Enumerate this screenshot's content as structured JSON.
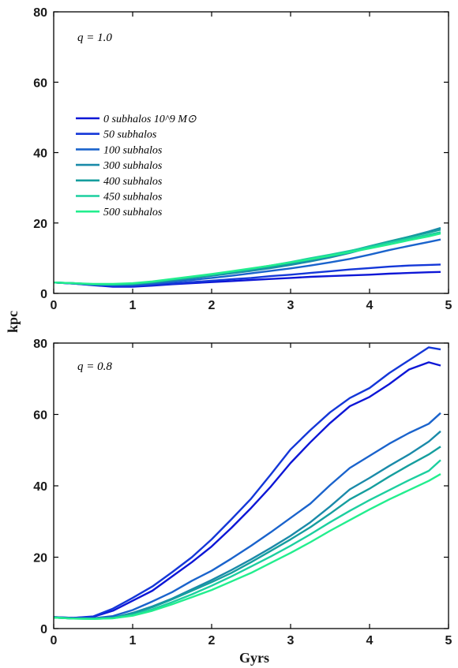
{
  "colors": [
    "#0d16d6",
    "#1437d8",
    "#1a63cc",
    "#1a8aa9",
    "#159e9e",
    "#1ccf9f",
    "#22ee8e"
  ],
  "axes": {
    "xlabel": "Gyrs",
    "ylabel": "kpc"
  },
  "chart_data": [
    {
      "type": "line",
      "annotation": "q = 1.0",
      "xlim": [
        0,
        5
      ],
      "ylim": [
        0,
        80
      ],
      "xticks": [
        "0",
        "1",
        "2",
        "3",
        "4",
        "5"
      ],
      "yticks": [
        "0",
        "20",
        "40",
        "60",
        "80"
      ],
      "legend_position": "left",
      "x": [
        0,
        0.25,
        0.5,
        0.75,
        1,
        1.25,
        1.5,
        1.75,
        2,
        2.25,
        2.5,
        2.75,
        3,
        3.25,
        3.5,
        3.75,
        4,
        4.25,
        4.5,
        4.75,
        4.9
      ],
      "series": [
        {
          "name": "0 subhalos 10^9 M⊙",
          "values": [
            3.1,
            2.8,
            2.3,
            1.9,
            1.9,
            2.2,
            2.6,
            2.9,
            3.2,
            3.5,
            3.8,
            4.1,
            4.4,
            4.7,
            4.9,
            5.1,
            5.3,
            5.6,
            5.8,
            6.0,
            6.1
          ]
        },
        {
          "name": "50 subhalos",
          "values": [
            3.1,
            2.8,
            2.4,
            2.1,
            2.1,
            2.4,
            2.8,
            3.2,
            3.6,
            4.0,
            4.4,
            4.9,
            5.3,
            5.8,
            6.3,
            6.8,
            7.2,
            7.6,
            7.9,
            8.1,
            8.2
          ]
        },
        {
          "name": "100 subhalos",
          "values": [
            3.1,
            2.8,
            2.5,
            2.3,
            2.4,
            2.8,
            3.3,
            3.8,
            4.4,
            5.0,
            5.7,
            6.4,
            7.1,
            7.9,
            8.8,
            9.8,
            11.0,
            12.3,
            13.5,
            14.6,
            15.3
          ]
        },
        {
          "name": "300 subhalos",
          "values": [
            3.1,
            2.9,
            2.6,
            2.5,
            2.6,
            3.1,
            3.7,
            4.3,
            5.0,
            5.7,
            6.4,
            7.2,
            8.1,
            9.1,
            10.2,
            11.5,
            13.0,
            14.6,
            16.1,
            17.6,
            18.6
          ]
        },
        {
          "name": "400 subhalos",
          "values": [
            3.1,
            2.9,
            2.6,
            2.5,
            2.7,
            3.2,
            3.8,
            4.5,
            5.2,
            5.9,
            6.7,
            7.5,
            8.5,
            9.6,
            10.7,
            12.0,
            13.4,
            14.8,
            16.1,
            17.3,
            18.1
          ]
        },
        {
          "name": "450 subhalos",
          "values": [
            3.1,
            2.9,
            2.6,
            2.6,
            2.8,
            3.3,
            4.0,
            4.7,
            5.4,
            6.2,
            7.0,
            7.9,
            8.9,
            10.0,
            11.0,
            12.1,
            13.2,
            14.4,
            15.6,
            16.7,
            17.4
          ]
        },
        {
          "name": "500 subhalos",
          "values": [
            3.1,
            2.9,
            2.7,
            2.7,
            2.9,
            3.4,
            4.1,
            4.8,
            5.5,
            6.3,
            7.1,
            7.9,
            8.8,
            9.7,
            10.7,
            11.7,
            12.8,
            13.9,
            15.1,
            16.2,
            17.0
          ]
        }
      ]
    },
    {
      "type": "line",
      "annotation": "q = 0.8",
      "xlim": [
        0,
        5
      ],
      "ylim": [
        0,
        80
      ],
      "xticks": [
        "0",
        "1",
        "2",
        "3",
        "4",
        "5"
      ],
      "yticks": [
        "0",
        "20",
        "40",
        "60",
        "80"
      ],
      "x": [
        0,
        0.25,
        0.5,
        0.75,
        1,
        1.25,
        1.5,
        1.75,
        2,
        2.25,
        2.5,
        2.75,
        3,
        3.25,
        3.5,
        3.75,
        4,
        4.25,
        4.5,
        4.75,
        4.9
      ],
      "series": [
        {
          "name": "0 subhalos 10^9 M⊙",
          "values": [
            3.2,
            3.0,
            3.3,
            5.0,
            7.8,
            10.6,
            14.6,
            18.6,
            23.0,
            28.2,
            33.8,
            39.8,
            46.4,
            52.2,
            57.6,
            62.3,
            64.9,
            68.5,
            72.6,
            74.6,
            73.7
          ]
        },
        {
          "name": "50 subhalos",
          "values": [
            3.2,
            3.0,
            3.4,
            5.6,
            8.6,
            11.8,
            15.8,
            20.0,
            25.0,
            30.6,
            36.4,
            43.2,
            50.2,
            55.6,
            60.6,
            64.6,
            67.4,
            71.6,
            75.2,
            78.8,
            78.2
          ]
        },
        {
          "name": "100 subhalos",
          "values": [
            3.2,
            2.9,
            2.9,
            3.5,
            5.2,
            7.6,
            10.2,
            13.4,
            16.2,
            19.6,
            23.2,
            27.0,
            31.0,
            35.0,
            40.2,
            45.0,
            48.4,
            51.8,
            54.8,
            57.4,
            60.4
          ]
        },
        {
          "name": "300 subhalos",
          "values": [
            3.1,
            2.8,
            2.8,
            3.0,
            4.4,
            6.2,
            8.4,
            11.0,
            13.6,
            16.4,
            19.4,
            22.6,
            26.0,
            29.8,
            34.2,
            39.0,
            42.2,
            45.6,
            48.8,
            52.4,
            55.3
          ]
        },
        {
          "name": "400 subhalos",
          "values": [
            3.1,
            2.8,
            2.8,
            3.0,
            4.2,
            6.0,
            8.2,
            10.6,
            13.0,
            15.6,
            18.6,
            21.8,
            25.0,
            28.4,
            32.2,
            36.2,
            39.2,
            42.6,
            45.8,
            48.8,
            51.0
          ]
        },
        {
          "name": "450 subhalos",
          "values": [
            3.1,
            2.8,
            2.7,
            2.9,
            3.8,
            5.4,
            7.4,
            9.6,
            12.0,
            14.6,
            17.4,
            20.2,
            23.2,
            26.4,
            29.8,
            33.0,
            36.0,
            38.8,
            41.6,
            44.2,
            47.2
          ]
        },
        {
          "name": "500 subhalos",
          "values": [
            3.1,
            2.8,
            2.7,
            2.9,
            3.6,
            5.0,
            6.8,
            8.8,
            10.8,
            13.2,
            15.6,
            18.4,
            21.2,
            24.2,
            27.4,
            30.4,
            33.4,
            36.2,
            38.8,
            41.4,
            43.3
          ]
        }
      ]
    }
  ]
}
